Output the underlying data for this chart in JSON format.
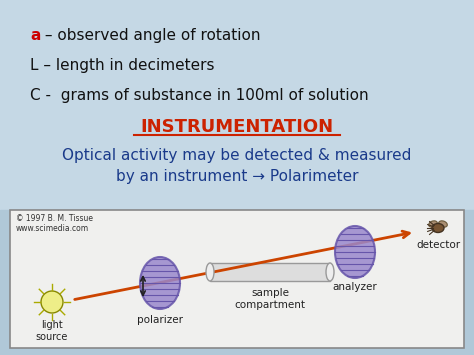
{
  "bg_top_color": "#c5d8e5",
  "bg_bottom_color": "#b0c8d8",
  "box_bg": "#f0f0ee",
  "line1_prefix": "a",
  "line1_prefix_color": "#cc0000",
  "line1_rest": " – observed angle of rotation",
  "line2": "L – length in decimeters",
  "line3": "C -  grams of substance in 100ml of solution",
  "heading": "INSTRUMENTATION",
  "heading_color": "#cc2200",
  "subtext": "Optical activity may be detected & measured\nby an instrument → Polarimeter",
  "subtext_color": "#1a3a8a",
  "copyright": "© 1997 B. M. Tissue\nwww.scimedia.com",
  "label_light": "light\nsource",
  "label_polarizer": "polarizer",
  "label_sample": "sample\ncompartment",
  "label_analyzer": "analyzer",
  "label_detector": "detector",
  "text_color_diagram": "#222222",
  "arrow_color": "#cc4400",
  "disk_color": "#9988cc",
  "disk_hatch_color": "#6655aa",
  "box_border": "#888888"
}
